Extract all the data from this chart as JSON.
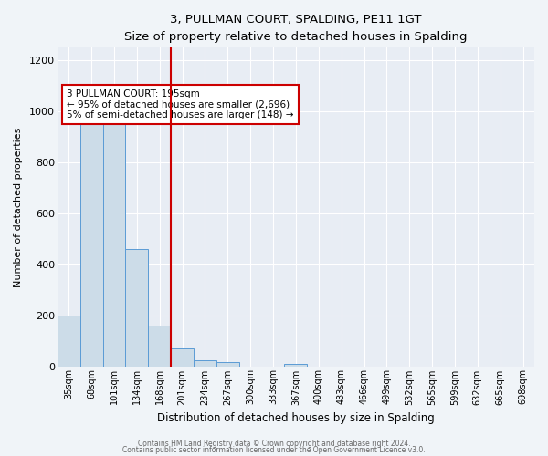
{
  "title": "3, PULLMAN COURT, SPALDING, PE11 1GT",
  "subtitle": "Size of property relative to detached houses in Spalding",
  "xlabel": "Distribution of detached houses by size in Spalding",
  "ylabel": "Number of detached properties",
  "categories": [
    "35sqm",
    "68sqm",
    "101sqm",
    "134sqm",
    "168sqm",
    "201sqm",
    "234sqm",
    "267sqm",
    "300sqm",
    "333sqm",
    "367sqm",
    "400sqm",
    "433sqm",
    "466sqm",
    "499sqm",
    "532sqm",
    "565sqm",
    "599sqm",
    "632sqm",
    "665sqm",
    "698sqm"
  ],
  "bar_values": [
    200,
    950,
    950,
    460,
    160,
    70,
    25,
    15,
    0,
    0,
    10,
    0,
    0,
    0,
    0,
    0,
    0,
    0,
    0,
    0,
    0
  ],
  "bar_color": "#ccdce8",
  "bar_edge_color": "#5b9bd5",
  "vline_x": 4.5,
  "vline_color": "#cc0000",
  "annotation_text": "3 PULLMAN COURT: 195sqm\n← 95% of detached houses are smaller (2,696)\n5% of semi-detached houses are larger (148) →",
  "annotation_box_color": "#ffffff",
  "annotation_box_edge": "#cc0000",
  "ylim": [
    0,
    1250
  ],
  "yticks": [
    0,
    200,
    400,
    600,
    800,
    1000,
    1200
  ],
  "footer1": "Contains HM Land Registry data © Crown copyright and database right 2024.",
  "footer2": "Contains public sector information licensed under the Open Government Licence v3.0.",
  "fig_facecolor": "#f0f4f8",
  "ax_facecolor": "#e8edf4"
}
